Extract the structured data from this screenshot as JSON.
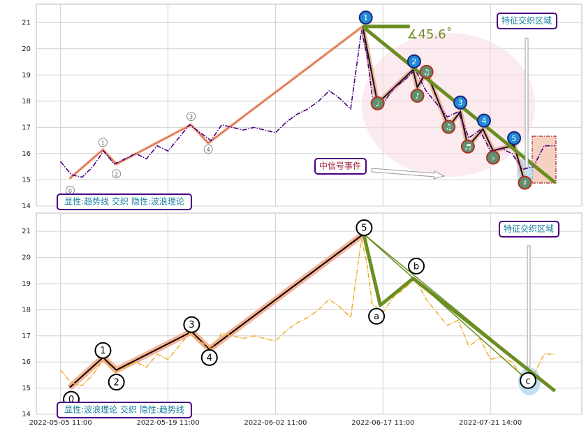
{
  "chart_data": [
    {
      "type": "line",
      "ylim": [
        14,
        21.7
      ],
      "yticks": [
        14,
        15,
        16,
        17,
        18,
        19,
        20,
        21
      ],
      "x": [
        0,
        2,
        4,
        6,
        8,
        10,
        12,
        14,
        16,
        18,
        20,
        22,
        24,
        26,
        28,
        30,
        32,
        34,
        36,
        38,
        40,
        42,
        44,
        46,
        48,
        50,
        52,
        54,
        56,
        57,
        58,
        60,
        62,
        64,
        66,
        68,
        70,
        72,
        74,
        76,
        78,
        80,
        82,
        84,
        86,
        88,
        90,
        92
      ],
      "series": [
        {
          "color": "#4b0082",
          "values": [
            15.7,
            15.2,
            15.1,
            15.5,
            16.1,
            15.6,
            15.8,
            16.0,
            15.8,
            16.3,
            16.1,
            16.6,
            17.1,
            16.8,
            16.5,
            17.1,
            17.0,
            16.9,
            17.0,
            16.9,
            16.8,
            17.2,
            17.5,
            17.7,
            18.0,
            18.4,
            18.1,
            17.7,
            20.7,
            19.8,
            18.2,
            17.9,
            18.5,
            18.8,
            19.2,
            18.4,
            17.9,
            17.4,
            17.6,
            16.6,
            16.9,
            16.1,
            16.2,
            16.0,
            15.4,
            15.5,
            16.3,
            16.3
          ]
        }
      ],
      "wave": {
        "color": "#c05030",
        "x": [
          1.7,
          7.9,
          10.4,
          24.3,
          27.5,
          56.2
        ],
        "values": [
          15.05,
          16.15,
          15.6,
          17.1,
          16.4,
          20.85
        ]
      },
      "wave_labels": {
        "x": [
          1.8,
          7.9,
          10.4,
          24.3,
          27.5
        ],
        "values": [
          14.6,
          16.43,
          15.23,
          17.42,
          16.17
        ],
        "labels": [
          "0",
          "1",
          "2",
          "3",
          "4"
        ]
      },
      "black_line": {
        "x": [
          56.2,
          59.0,
          65.6,
          66.4,
          68.1,
          72.2,
          74.4,
          75.8,
          78.6,
          80.5,
          84.4,
          86.4
        ],
        "values": [
          20.87,
          17.92,
          19.2,
          18.53,
          19.12,
          17.02,
          17.6,
          16.27,
          16.94,
          16.11,
          16.32,
          14.89
        ]
      },
      "trend_lines": [
        {
          "color": "#6b8e23",
          "x": [
            56.2,
            65.0
          ],
          "values": [
            20.85,
            20.85
          ]
        },
        {
          "color": "#6b8e23",
          "x": [
            56.2,
            92.0
          ],
          "values": [
            20.85,
            14.9
          ]
        }
      ],
      "wave_points": {
        "x": [
          56.8,
          65.8,
          74.4,
          78.8,
          84.4
        ],
        "values": [
          21.19,
          19.52,
          17.95,
          17.26,
          16.59
        ],
        "labels": [
          "1",
          "2",
          "3",
          "4",
          "5"
        ]
      },
      "note_points": {
        "x": [
          59.0,
          66.4,
          68.1,
          72.2,
          75.8,
          80.5,
          86.4
        ],
        "values": [
          17.92,
          18.21,
          19.12,
          17.02,
          16.27,
          15.85,
          14.89
        ],
        "labels": [
          "♩",
          "♪",
          "♫",
          "♫",
          "♬",
          "♭",
          "♯"
        ]
      },
      "angle_label": "∡45.6˚",
      "zone_label": "特征交织区域",
      "signal_label": "中信号事件",
      "mode_label": "显性:趋势线 交织 隐性:波浪理论"
    },
    {
      "type": "line",
      "ylim": [
        14,
        21.7
      ],
      "yticks": [
        14,
        15,
        16,
        17,
        18,
        19,
        20,
        21
      ],
      "xlim": [
        -4.5,
        97.0
      ],
      "xticks": [
        {
          "value": 0,
          "label": "2022-05-05 11:00"
        },
        {
          "value": 20,
          "label": "2022-05-19 11:00"
        },
        {
          "value": 40,
          "label": "2022-06-02 11:00"
        },
        {
          "value": 60,
          "label": "2022-06-17 11:00"
        },
        {
          "value": 80,
          "label": "2022-07-21 14:00"
        }
      ],
      "x": [
        0,
        2,
        4,
        6,
        8,
        10,
        12,
        14,
        16,
        18,
        20,
        22,
        24,
        26,
        28,
        30,
        32,
        34,
        36,
        38,
        40,
        42,
        44,
        46,
        48,
        50,
        52,
        54,
        56,
        57,
        58,
        60,
        62,
        64,
        66,
        68,
        70,
        72,
        74,
        76,
        78,
        80,
        82,
        84,
        86,
        88,
        90,
        92
      ],
      "series": [
        {
          "color": "#f0b030",
          "values": [
            15.7,
            15.2,
            15.1,
            15.5,
            16.1,
            15.6,
            15.8,
            16.0,
            15.8,
            16.3,
            16.1,
            16.6,
            17.1,
            16.8,
            16.5,
            17.1,
            17.0,
            16.9,
            17.0,
            16.9,
            16.8,
            17.2,
            17.5,
            17.7,
            18.0,
            18.4,
            18.1,
            17.7,
            20.7,
            19.8,
            18.2,
            17.9,
            18.5,
            18.8,
            19.2,
            18.4,
            17.9,
            17.4,
            17.6,
            16.6,
            16.9,
            16.1,
            16.2,
            16.0,
            15.4,
            15.5,
            16.3,
            16.3
          ]
        }
      ],
      "wave": {
        "color": "#000000",
        "x": [
          1.7,
          7.9,
          10.4,
          24.4,
          27.7,
          56.4
        ],
        "values": [
          15.02,
          16.17,
          15.69,
          17.16,
          16.49,
          20.9
        ]
      },
      "trend_lines": [
        {
          "color": "#6b8e23",
          "x": [
            56.4,
            59.5,
            65.6,
            92.0
          ],
          "values": [
            20.9,
            18.17,
            19.2,
            14.89
          ]
        },
        {
          "color": "#6b8e23",
          "x": [
            56.4,
            87.0
          ],
          "values": [
            20.9,
            15.29
          ]
        },
        {
          "color": "#6b8e23",
          "x": [
            56.4,
            92.0
          ],
          "values": [
            20.9,
            14.89
          ]
        }
      ],
      "wave_labels": {
        "x": [
          2.0,
          7.9,
          10.4,
          24.4,
          27.7,
          56.5,
          58.8,
          66.2,
          87.0
        ],
        "values": [
          14.57,
          16.44,
          15.23,
          17.43,
          16.17,
          21.14,
          17.75,
          19.67,
          15.29
        ],
        "labels": [
          "0",
          "1",
          "2",
          "3",
          "4",
          "5",
          "a",
          "b",
          "c"
        ]
      },
      "zone_label": "特征交织区域",
      "mode_label": "显性:波浪理论 交织 隐性:趋势线"
    }
  ]
}
